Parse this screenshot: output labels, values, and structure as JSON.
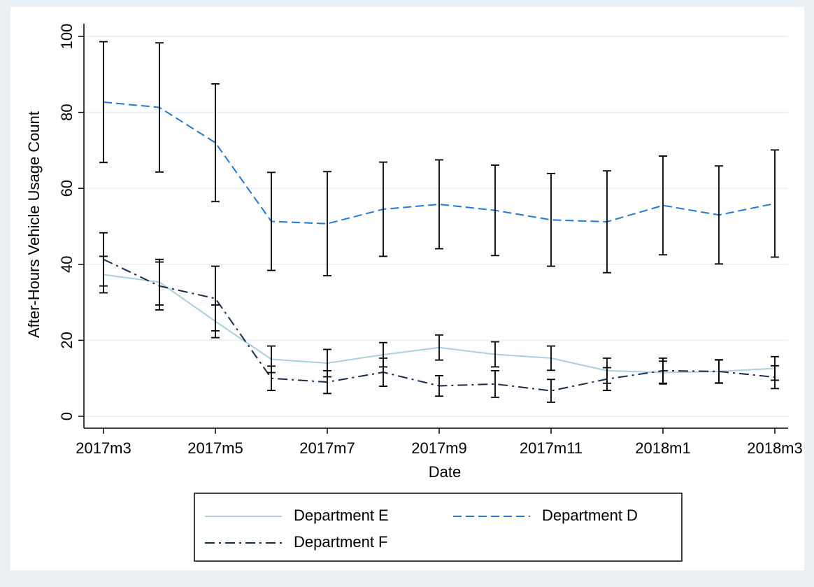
{
  "chart_data": {
    "type": "line",
    "x_label": "Date",
    "y_label": "After-Hours Vehicle Usage Count",
    "categories": [
      "2017m3",
      null,
      "2017m5",
      null,
      "2017m7",
      null,
      "2017m9",
      null,
      "2017m11",
      null,
      "2018m1",
      null,
      "2018m3"
    ],
    "series": [
      {
        "name": "Department E",
        "color": "#a8d0de",
        "dash": "solid",
        "values": [
          37.3,
          35.3,
          25,
          15,
          14,
          16.2,
          18.1,
          16.3,
          15.3,
          12,
          11.5,
          11.8,
          12.6
        ],
        "errors": [
          4.8,
          6,
          4.3,
          3.5,
          3.6,
          3.2,
          3.3,
          3.3,
          3.2,
          3.3,
          3,
          3,
          3.1
        ]
      },
      {
        "name": "Department D",
        "color": "#1f7ad8",
        "dash": "dashed",
        "values": [
          82.7,
          81.3,
          72,
          51.3,
          50.7,
          54.5,
          55.8,
          54.2,
          51.7,
          51.2,
          55.5,
          53,
          56
        ],
        "errors": [
          15.9,
          17,
          15.5,
          12.9,
          13.7,
          12.4,
          11.7,
          11.9,
          12.2,
          13.4,
          13,
          12.9,
          14.1
        ]
      },
      {
        "name": "Department F",
        "color": "#1a2a4a",
        "dash": "dashdot",
        "values": [
          41.3,
          34.3,
          31,
          10,
          9,
          11.6,
          8,
          8.5,
          6.7,
          9.8,
          12,
          11.8,
          10.3
        ],
        "errors": [
          7,
          6.3,
          8.5,
          3.2,
          3,
          3.7,
          2.7,
          3.5,
          3,
          3,
          3.3,
          3.1,
          3
        ]
      }
    ],
    "error_bar_color": "#000000",
    "ylim": [
      0,
      100
    ],
    "yticks": [
      0,
      20,
      40,
      60,
      80,
      100
    ],
    "grid": true,
    "legend": "bottom"
  }
}
